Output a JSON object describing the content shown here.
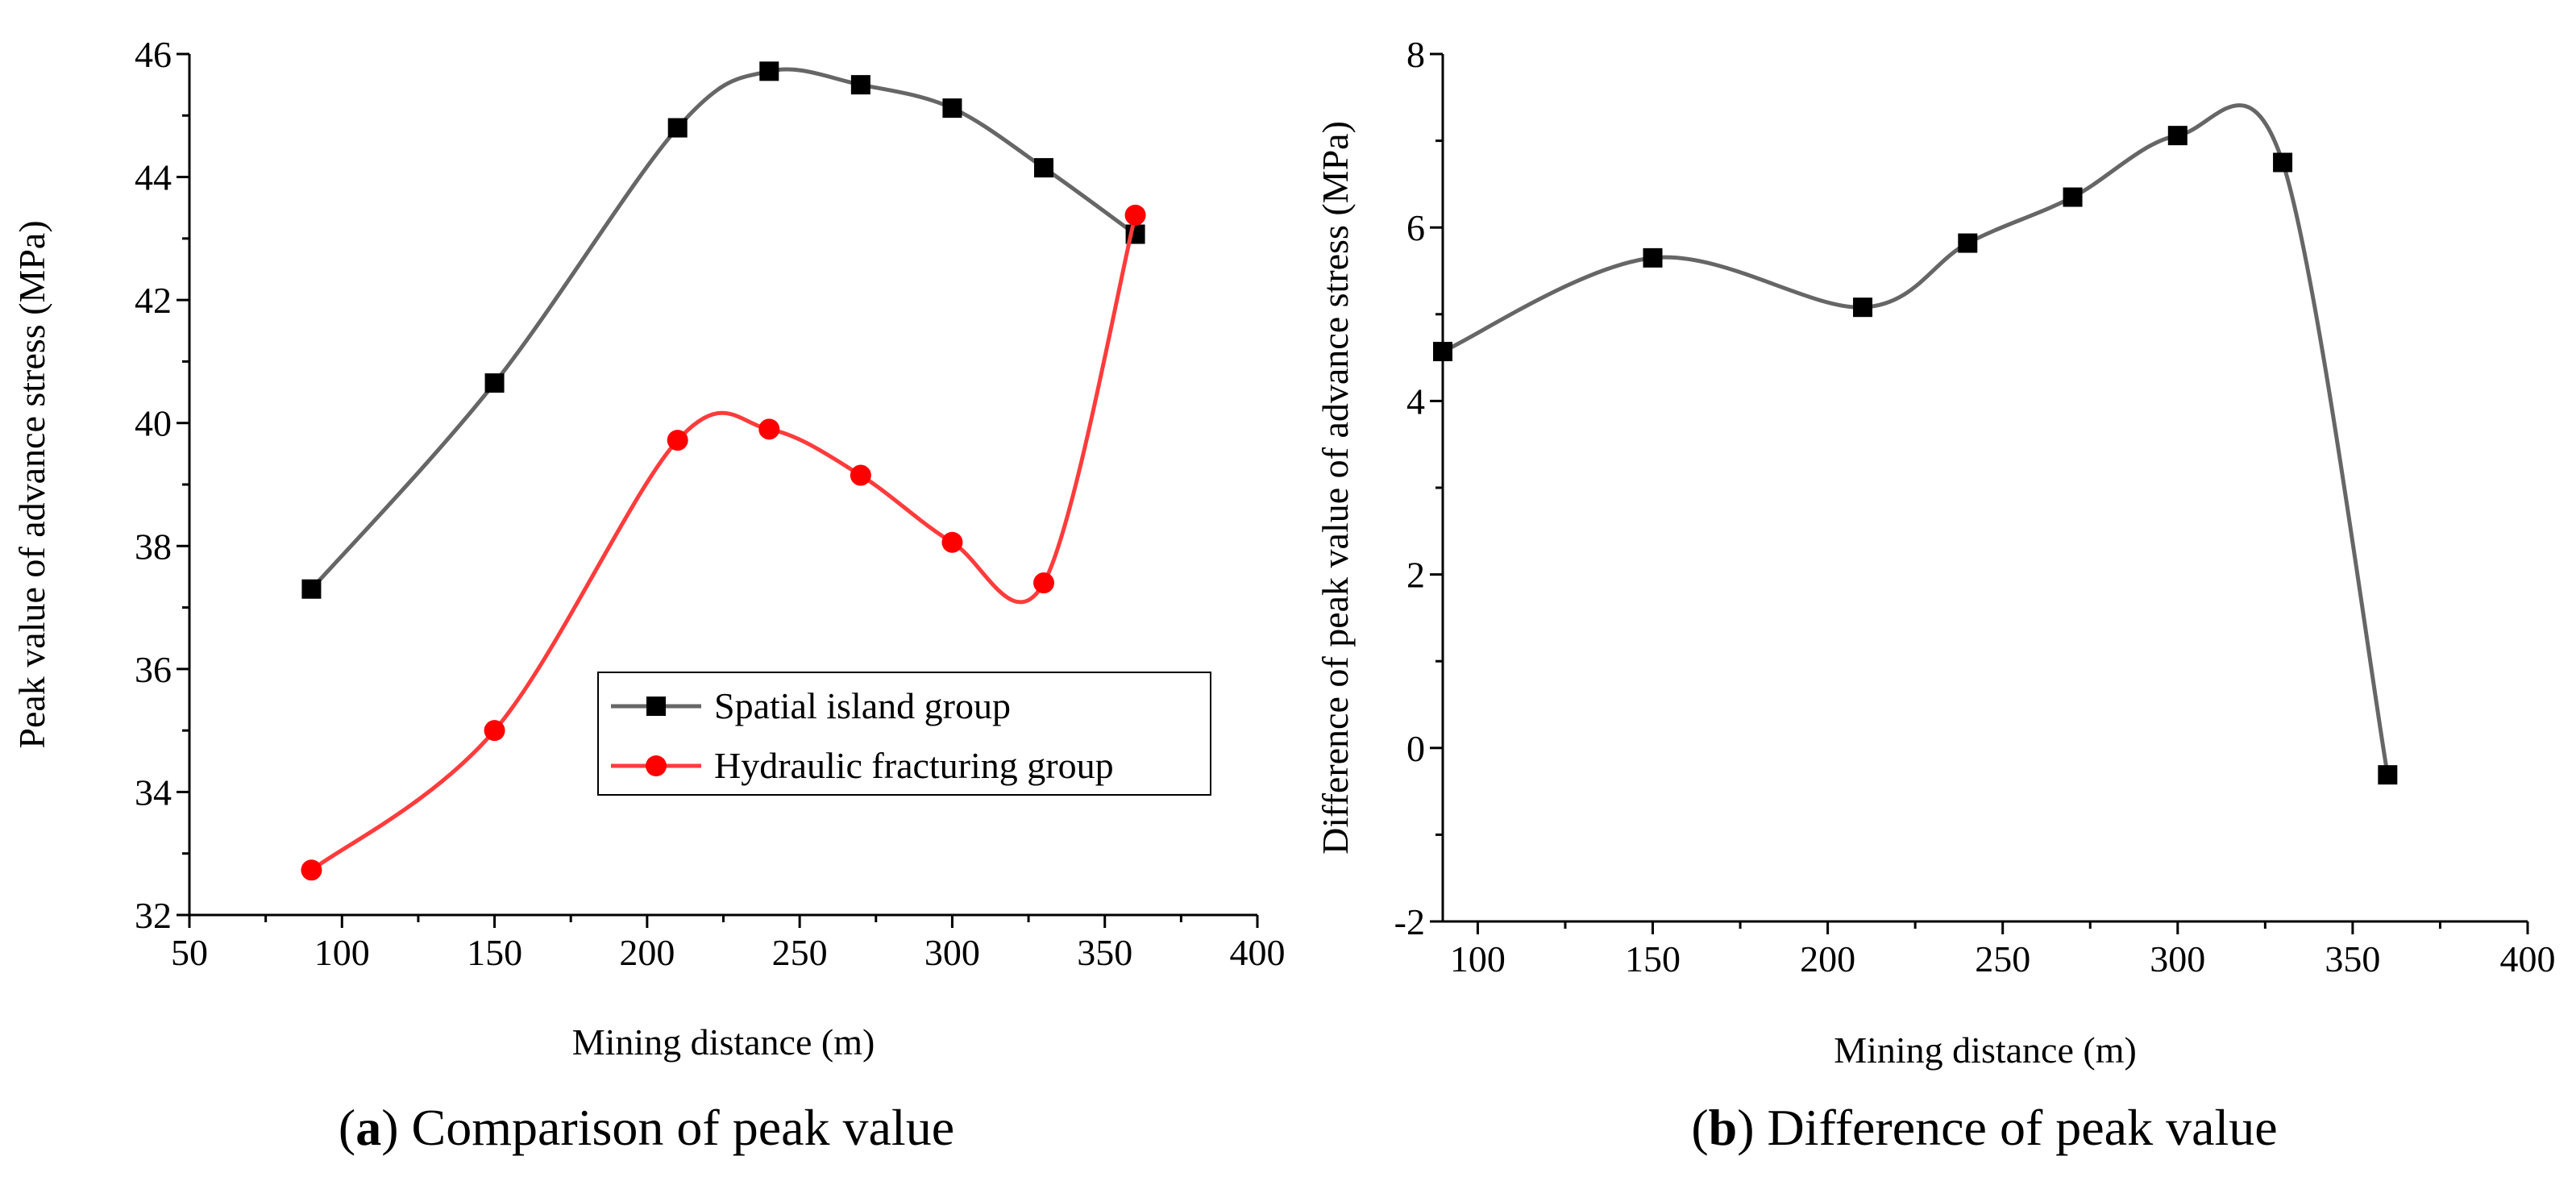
{
  "chart_data": [
    {
      "type": "line",
      "caption_prefix": "(",
      "caption_letter": "a",
      "caption_suffix": ") Comparison of peak value",
      "xlabel": "Mining distance (m)",
      "ylabel": "Peak value of advance stress (MPa)",
      "xlim": [
        50,
        400
      ],
      "ylim": [
        32,
        46
      ],
      "xticks": [
        "50",
        "100",
        "150",
        "200",
        "250",
        "300",
        "350",
        "400"
      ],
      "yticks": [
        "32",
        "34",
        "36",
        "38",
        "40",
        "42",
        "44",
        "46"
      ],
      "legend_position": "lower-right",
      "series": [
        {
          "name": "Spatial island group",
          "color": "#666666",
          "marker": "square",
          "marker_color": "#000000",
          "x": [
            90,
            150,
            210,
            240,
            270,
            300,
            330,
            360
          ],
          "y": [
            37.3,
            40.65,
            44.8,
            45.72,
            45.5,
            45.12,
            44.15,
            43.07
          ]
        },
        {
          "name": "Hydraulic fracturing group",
          "color": "#ff3b3b",
          "marker": "circle",
          "marker_color": "#ff0000",
          "x": [
            90,
            150,
            210,
            240,
            270,
            300,
            330,
            360
          ],
          "y": [
            32.73,
            35.0,
            39.72,
            39.9,
            39.15,
            38.06,
            37.4,
            43.38
          ]
        }
      ]
    },
    {
      "type": "line",
      "caption_prefix": "(",
      "caption_letter": "b",
      "caption_suffix": ") Difference of peak value",
      "xlabel": "Mining distance (m)",
      "ylabel": "Difference of peak value of advance stress (MPa)",
      "xlim": [
        90,
        400
      ],
      "ylim": [
        -2,
        8
      ],
      "xticks": [
        "100",
        "150",
        "200",
        "250",
        "300",
        "350",
        "400"
      ],
      "yticks": [
        "-2",
        "0",
        "2",
        "4",
        "6",
        "8"
      ],
      "series": [
        {
          "color": "#666666",
          "marker": "square",
          "marker_color": "#000000",
          "x": [
            90,
            150,
            210,
            240,
            270,
            300,
            330,
            360
          ],
          "y": [
            4.57,
            5.65,
            5.08,
            5.82,
            6.35,
            7.06,
            6.75,
            -0.31
          ]
        }
      ]
    }
  ]
}
